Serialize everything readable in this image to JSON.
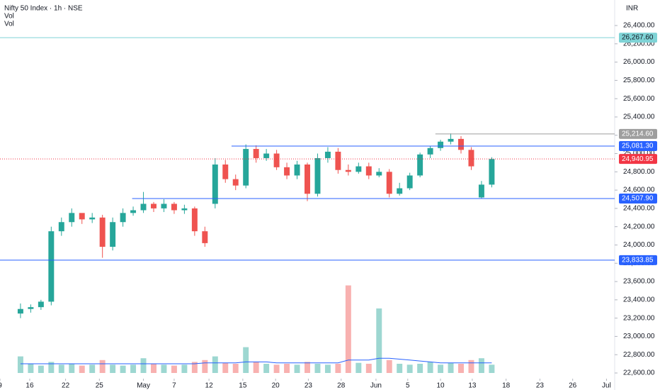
{
  "chart_data": {
    "type": "candlestick",
    "title": "Nifty 50 Index · 1h · NSE",
    "indicators": [
      "Vol",
      "Vol"
    ],
    "currency": "INR",
    "up_color": "#26a69a",
    "down_color": "#ef5350",
    "xlim": [
      0,
      60
    ],
    "xticks": [
      {
        "value": 0,
        "label": "9"
      },
      {
        "value": 2.9,
        "label": "16"
      },
      {
        "value": 6.4,
        "label": "22"
      },
      {
        "value": 9.7,
        "label": "25"
      },
      {
        "value": 14,
        "label": "May"
      },
      {
        "value": 17,
        "label": "7"
      },
      {
        "value": 20.4,
        "label": "12"
      },
      {
        "value": 23.7,
        "label": "15"
      },
      {
        "value": 26.9,
        "label": "20"
      },
      {
        "value": 30.1,
        "label": "23"
      },
      {
        "value": 33.3,
        "label": "28"
      },
      {
        "value": 36.7,
        "label": "Jun"
      },
      {
        "value": 39.8,
        "label": "5"
      },
      {
        "value": 43,
        "label": "10"
      },
      {
        "value": 46.1,
        "label": "13"
      },
      {
        "value": 49.4,
        "label": "18"
      },
      {
        "value": 52.7,
        "label": "23"
      },
      {
        "value": 55.9,
        "label": "26"
      },
      {
        "value": 59.2,
        "label": "Jul"
      }
    ],
    "ylim": [
      22600,
      26400
    ],
    "yticks": [
      {
        "value": 22600,
        "label": "22,600.00"
      },
      {
        "value": 22800,
        "label": "22,800.00"
      },
      {
        "value": 23000,
        "label": "23,000.00"
      },
      {
        "value": 23200,
        "label": "23,200.00"
      },
      {
        "value": 23400,
        "label": "23,400.00"
      },
      {
        "value": 23600,
        "label": "23,600.00"
      },
      {
        "value": 23800,
        "label": "23,800.00"
      },
      {
        "value": 24000,
        "label": "24,000.00"
      },
      {
        "value": 24200,
        "label": "24,200.00"
      },
      {
        "value": 24400,
        "label": "24,400.00"
      },
      {
        "value": 24600,
        "label": "24,600.00"
      },
      {
        "value": 24800,
        "label": "24,800.00"
      },
      {
        "value": 25000,
        "label": "25,000.00"
      },
      {
        "value": 25200,
        "label": "25,200.00"
      },
      {
        "value": 25400,
        "label": "25,400.00"
      },
      {
        "value": 25600,
        "label": "25,600.00"
      },
      {
        "value": 25800,
        "label": "25,800.00"
      },
      {
        "value": 26000,
        "label": "26,000.00"
      },
      {
        "value": 26200,
        "label": "26,200.00"
      },
      {
        "value": 26400,
        "label": "26,400.00"
      }
    ],
    "x": [
      2,
      3,
      4,
      5,
      6,
      7,
      8,
      9,
      10,
      11,
      12,
      13,
      14,
      15,
      16,
      17,
      18,
      19,
      20,
      21,
      22,
      23,
      24,
      25,
      26,
      27,
      28,
      29,
      30,
      31,
      32,
      33,
      34,
      35,
      36,
      37,
      38,
      39,
      40,
      41,
      42,
      43,
      44,
      45,
      46,
      47,
      48
    ],
    "open": [
      23250,
      23300,
      23320,
      23380,
      24150,
      24250,
      24350,
      24280,
      24300,
      23980,
      24250,
      24350,
      24380,
      24450,
      24400,
      24450,
      24380,
      24400,
      24150,
      24450,
      24880,
      24720,
      24650,
      25050,
      24950,
      25000,
      24850,
      24760,
      24880,
      24560,
      24950,
      25020,
      24820,
      24800,
      24860,
      24760,
      24800,
      24560,
      24620,
      24760,
      24990,
      25060,
      25130,
      25160,
      25040,
      24520,
      24660
    ],
    "high": [
      23360,
      23350,
      23400,
      24200,
      24300,
      24400,
      24330,
      24350,
      24330,
      24300,
      24400,
      24420,
      24580,
      24470,
      24500,
      24470,
      24440,
      24420,
      24200,
      24950,
      24930,
      24770,
      25100,
      25090,
      25050,
      25040,
      24900,
      24920,
      24900,
      25000,
      25070,
      25060,
      24880,
      24900,
      24900,
      24840,
      24830,
      24680,
      24790,
      25010,
      25080,
      25150,
      25220,
      25190,
      25070,
      24700,
      24960
    ],
    "low": [
      23200,
      23260,
      23290,
      23340,
      24100,
      24200,
      24230,
      24240,
      23860,
      23940,
      24200,
      24320,
      24350,
      24360,
      24360,
      24340,
      24340,
      24100,
      23980,
      24400,
      24680,
      24600,
      24620,
      24900,
      24920,
      24820,
      24720,
      24720,
      24480,
      24530,
      24900,
      24780,
      24760,
      24780,
      24720,
      24740,
      24520,
      24540,
      24600,
      24740,
      24950,
      25030,
      25100,
      25000,
      24820,
      24507.9,
      24630
    ],
    "close": [
      23300,
      23320,
      23380,
      24150,
      24250,
      24350,
      24280,
      24300,
      23980,
      24250,
      24350,
      24380,
      24450,
      24400,
      24450,
      24380,
      24400,
      24150,
      24020,
      24880,
      24720,
      24650,
      25050,
      24950,
      25000,
      24850,
      24760,
      24880,
      24560,
      24950,
      25020,
      24820,
      24800,
      24860,
      24760,
      24800,
      24560,
      24620,
      24760,
      24990,
      25060,
      25130,
      25160,
      25040,
      24860,
      24660,
      24940
    ],
    "volume": [
      18,
      10,
      8,
      12,
      9,
      10,
      8,
      9,
      14,
      9,
      8,
      9,
      16,
      10,
      9,
      8,
      9,
      12,
      14,
      18,
      11,
      10,
      28,
      12,
      10,
      9,
      10,
      9,
      12,
      10,
      9,
      10,
      95,
      11,
      10,
      70,
      14,
      10,
      9,
      10,
      12,
      9,
      11,
      10,
      14,
      16,
      9
    ],
    "volume_ma": [
      10,
      10,
      10,
      10,
      10,
      10,
      10,
      10,
      10,
      10,
      10,
      10,
      10,
      10,
      10,
      10,
      10,
      10,
      11,
      11,
      11,
      11,
      12,
      12,
      12,
      11,
      11,
      11,
      11,
      11,
      11,
      11,
      14,
      14,
      14,
      16,
      16,
      15,
      14,
      13,
      12,
      11,
      11,
      11,
      11,
      11,
      11
    ],
    "volume_lim": [
      0,
      100
    ],
    "volume_ma_color": "#2962ff",
    "levels": [
      {
        "value": 26267.6,
        "label": "26,267.60",
        "color": "#7fd3d6",
        "x_start": 0
      },
      {
        "value": 25214.6,
        "label": "25,214.60",
        "color": "#9e9e9e",
        "x_start": 42.5
      },
      {
        "value": 25081.3,
        "label": "25,081.30",
        "color": "#2962ff",
        "x_start": 22.6
      },
      {
        "value": 24507.9,
        "label": "24,507.90",
        "color": "#2962ff",
        "x_start": 12.9
      },
      {
        "value": 23833.85,
        "label": "23,833.85",
        "color": "#2962ff",
        "x_start": 0
      }
    ],
    "last_price": {
      "value": 24940.95,
      "label": "24,940.95",
      "color": "#f23645"
    }
  }
}
